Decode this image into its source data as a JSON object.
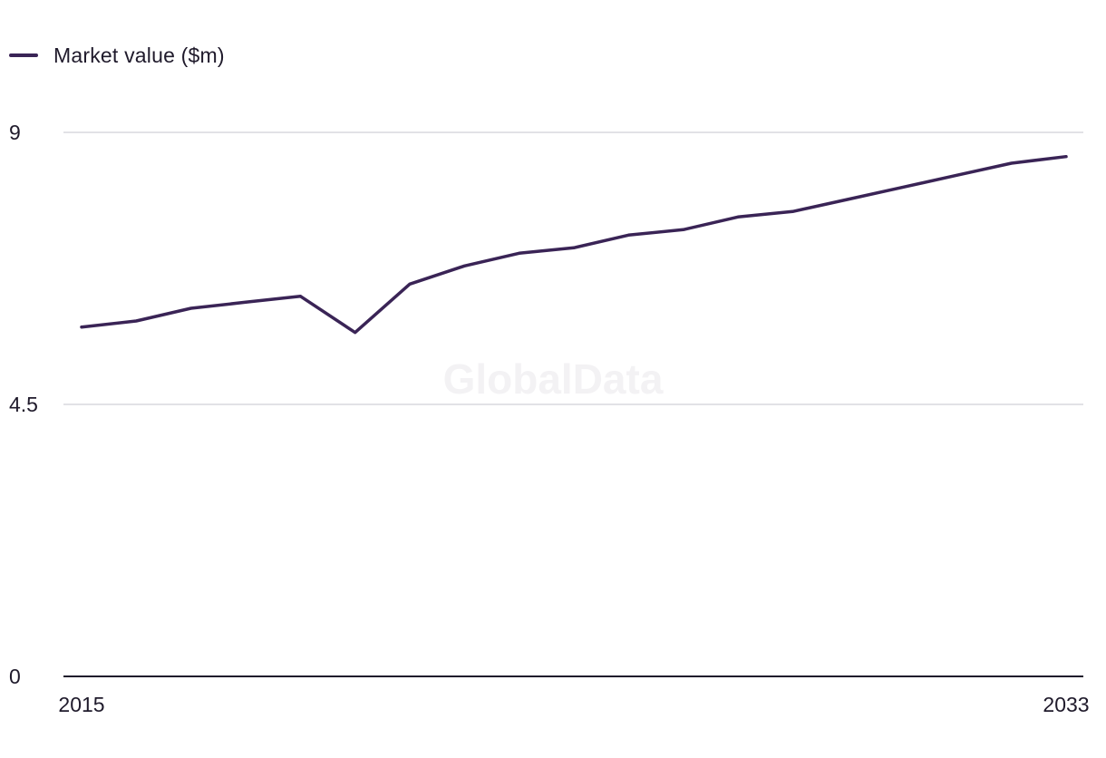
{
  "legend": {
    "label": "Market value ($m)"
  },
  "watermark": "GlobalData",
  "colors": {
    "series": "#3a2456",
    "grid": "#d9d9de",
    "axis": "#1f1a2b"
  },
  "chart_data": {
    "type": "line",
    "title": "",
    "xlabel": "",
    "ylabel": "",
    "x": [
      2015,
      2016,
      2017,
      2018,
      2019,
      2020,
      2021,
      2022,
      2023,
      2024,
      2025,
      2026,
      2027,
      2028,
      2029,
      2030,
      2031,
      2032,
      2033
    ],
    "series": [
      {
        "name": "Market value ($m)",
        "values": [
          5.78,
          5.88,
          6.09,
          6.19,
          6.29,
          5.69,
          6.49,
          6.79,
          7.0,
          7.09,
          7.3,
          7.39,
          7.6,
          7.69,
          7.89,
          8.09,
          8.29,
          8.49,
          8.6
        ]
      }
    ],
    "ylim": [
      0,
      9
    ],
    "yticks": [
      "0",
      "4.5",
      "9"
    ],
    "xticks": [
      "2015",
      "2033"
    ],
    "grid": true,
    "legend_position": "top-left"
  }
}
